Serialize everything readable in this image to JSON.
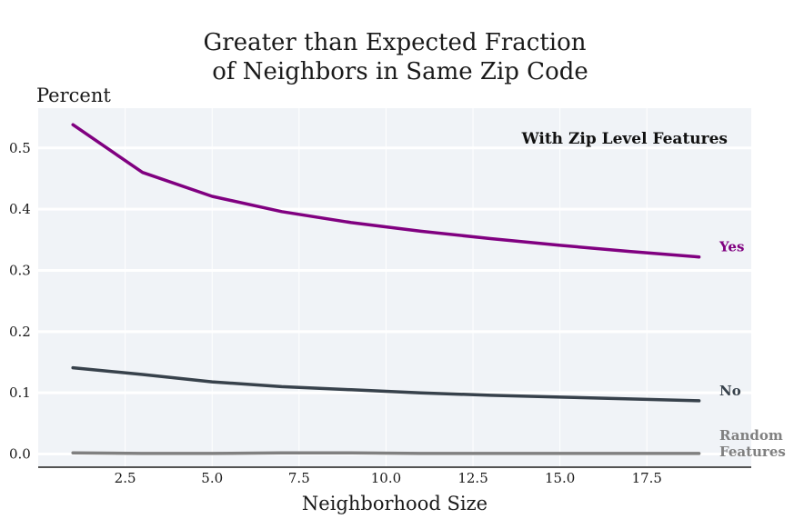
{
  "chart_data": {
    "type": "line",
    "title": [
      "Greater than Expected Fraction",
      "of Neighbors in Same Zip Code"
    ],
    "xlabel": "Neighborhood Size",
    "ylabel": "Percent",
    "annotation": "With Zip Level Features",
    "xlim": [
      0,
      20.5
    ],
    "ylim": [
      -0.02,
      0.565
    ],
    "xticks": [
      2.5,
      5.0,
      7.5,
      10.0,
      12.5,
      15.0,
      17.5
    ],
    "xtick_labels": [
      "2.5",
      "5.0",
      "7.5",
      "10.0",
      "12.5",
      "15.0",
      "17.5"
    ],
    "yticks": [
      0.0,
      0.1,
      0.2,
      0.3,
      0.4,
      0.5
    ],
    "ytick_labels": [
      "0.0",
      "0.1",
      "0.2",
      "0.3",
      "0.4",
      "0.5"
    ],
    "grid": true,
    "x": [
      1,
      3,
      5,
      7,
      9,
      11,
      13,
      15,
      17,
      19
    ],
    "series": [
      {
        "name": "Yes",
        "label_lines": [
          "Yes"
        ],
        "color": "#800080",
        "values": [
          0.538,
          0.46,
          0.421,
          0.396,
          0.378,
          0.364,
          0.352,
          0.341,
          0.331,
          0.322
        ]
      },
      {
        "name": "No",
        "label_lines": [
          "No"
        ],
        "color": "#37414b",
        "values": [
          0.141,
          0.13,
          0.118,
          0.11,
          0.105,
          0.1,
          0.096,
          0.093,
          0.09,
          0.087
        ]
      },
      {
        "name": "Random Features",
        "label_lines": [
          "Random",
          "Features"
        ],
        "color": "#808080",
        "values": [
          0.002,
          0.001,
          0.001,
          0.002,
          0.002,
          0.001,
          0.001,
          0.001,
          0.001,
          0.001
        ]
      }
    ]
  }
}
